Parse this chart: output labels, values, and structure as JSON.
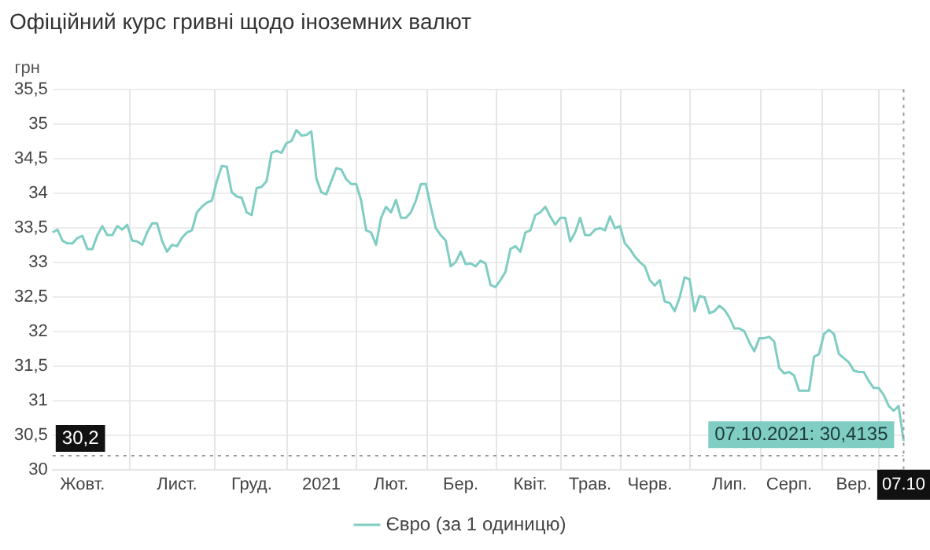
{
  "chart_data": {
    "type": "line",
    "title": "Офіційний курс гривні щодо іноземних валют",
    "ylabel": "грн",
    "categories": [
      null,
      null,
      null,
      null,
      null,
      null,
      "Жовт.",
      null,
      null,
      null,
      null,
      null,
      null,
      null,
      null,
      null,
      null,
      null,
      null,
      null,
      null,
      null,
      null,
      null,
      null,
      "Лист.",
      null,
      null,
      null,
      null,
      null,
      null,
      null,
      null,
      null,
      null,
      null,
      null,
      null,
      null,
      "Груд.",
      null,
      null,
      null,
      null,
      null,
      null,
      null,
      null,
      null,
      null,
      null,
      null,
      null,
      "2021",
      null,
      null,
      null,
      null,
      null,
      null,
      null,
      null,
      null,
      null,
      null,
      null,
      null,
      "Лют.",
      null,
      null,
      null,
      null,
      null,
      null,
      null,
      null,
      null,
      null,
      null,
      null,
      null,
      "Бер.",
      null,
      null,
      null,
      null,
      null,
      null,
      null,
      null,
      null,
      null,
      null,
      null,
      null,
      "Квіт.",
      null,
      null,
      null,
      null,
      null,
      null,
      null,
      null,
      null,
      null,
      null,
      "Трав.",
      null,
      null,
      null,
      null,
      null,
      null,
      null,
      null,
      null,
      null,
      null,
      "Черв.",
      null,
      null,
      null,
      null,
      null,
      null,
      null,
      null,
      null,
      null,
      null,
      null,
      null,
      null,
      null,
      "Лип.",
      null,
      null,
      null,
      null,
      null,
      null,
      null,
      null,
      null,
      null,
      null,
      "Серп.",
      null,
      null,
      null,
      null,
      null,
      null,
      null,
      null,
      null,
      null,
      null,
      null,
      "Вер.",
      null,
      null,
      null,
      null,
      null,
      null,
      null,
      null,
      null,
      "07.10"
    ],
    "series": [
      {
        "name": "Євро (за 1 одиницю)",
        "color": "#7fcdc3",
        "values": [
          33.43,
          33.47,
          33.31,
          33.27,
          33.27,
          33.35,
          33.38,
          33.19,
          33.19,
          33.39,
          33.52,
          33.39,
          33.39,
          33.52,
          33.47,
          33.54,
          33.31,
          33.3,
          33.25,
          33.43,
          33.56,
          33.56,
          33.31,
          33.15,
          33.25,
          33.23,
          33.35,
          33.43,
          33.46,
          33.72,
          33.8,
          33.86,
          33.89,
          34.17,
          34.39,
          34.38,
          34.01,
          33.95,
          33.93,
          33.72,
          33.68,
          34.07,
          34.09,
          34.17,
          34.58,
          34.61,
          34.58,
          34.72,
          34.75,
          34.91,
          34.83,
          34.84,
          34.89,
          34.21,
          34.01,
          33.98,
          34.17,
          34.36,
          34.34,
          34.2,
          34.13,
          34.13,
          33.89,
          33.46,
          33.43,
          33.25,
          33.64,
          33.8,
          33.72,
          33.9,
          33.64,
          33.64,
          33.72,
          33.89,
          34.13,
          34.13,
          33.8,
          33.49,
          33.39,
          33.31,
          32.94,
          33.0,
          33.15,
          32.97,
          32.98,
          32.94,
          33.02,
          32.98,
          32.67,
          32.64,
          32.74,
          32.86,
          33.19,
          33.23,
          33.15,
          33.43,
          33.46,
          33.68,
          33.72,
          33.8,
          33.66,
          33.54,
          33.64,
          33.64,
          33.3,
          33.43,
          33.64,
          33.39,
          33.39,
          33.47,
          33.49,
          33.46,
          33.66,
          33.49,
          33.52,
          33.27,
          33.19,
          33.08,
          33.0,
          32.94,
          32.74,
          32.66,
          32.74,
          32.43,
          32.41,
          32.29,
          32.49,
          32.78,
          32.75,
          32.29,
          32.51,
          32.49,
          32.26,
          32.29,
          32.37,
          32.31,
          32.2,
          32.04,
          32.04,
          32.0,
          31.84,
          31.71,
          31.9,
          31.9,
          31.92,
          31.85,
          31.47,
          31.39,
          31.41,
          31.36,
          31.14,
          31.14,
          31.14,
          31.63,
          31.67,
          31.96,
          32.02,
          31.96,
          31.67,
          31.61,
          31.55,
          31.43,
          31.41,
          31.41,
          31.28,
          31.18,
          31.18,
          31.08,
          30.92,
          30.85,
          30.92,
          30.4135
        ]
      }
    ],
    "ylim": [
      30,
      35.5
    ],
    "yticks": [
      30,
      {
        "value": 30.5,
        "label": "30,5"
      },
      31,
      {
        "value": 31.5,
        "label": "31,5"
      },
      32,
      {
        "value": 32.5,
        "label": "32,5"
      },
      33,
      {
        "value": 33.5,
        "label": "33,5"
      },
      34,
      {
        "value": 34.5,
        "label": "34,5"
      },
      35,
      {
        "value": 35.5,
        "label": "35,5"
      }
    ],
    "ref_lines": [
      {
        "axis": "y",
        "value": 30.2,
        "label": "30,2",
        "color": "#999999",
        "line_style": "dotted"
      },
      {
        "axis": "x",
        "value": "07.10",
        "color": "#999999",
        "line_style": "dotted"
      }
    ],
    "annotations": [
      {
        "text": "07.10.2021: 30,4135",
        "x": "07.10",
        "y": 30.4135
      }
    ],
    "grid": true,
    "legend": "bottom",
    "marker": "none",
    "line_style": "solid"
  }
}
